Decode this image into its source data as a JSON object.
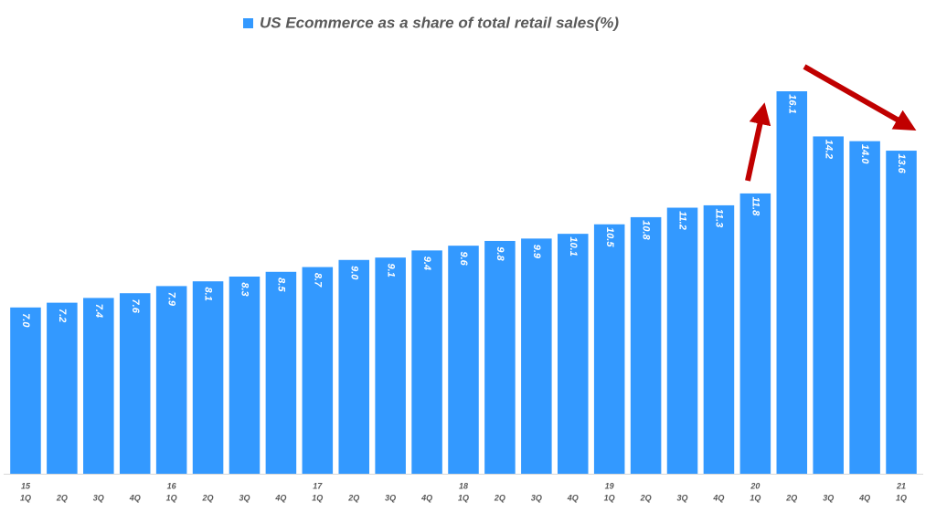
{
  "chart_data": {
    "type": "bar",
    "title": "US Ecommerce as a share of total retail sales(%)",
    "color": "#3399ff",
    "years": [
      "15",
      null,
      null,
      null,
      "16",
      null,
      null,
      null,
      "17",
      null,
      null,
      null,
      "18",
      null,
      null,
      null,
      "19",
      null,
      null,
      null,
      "20",
      null,
      null,
      null,
      "21"
    ],
    "categories": [
      "1Q",
      "2Q",
      "3Q",
      "4Q",
      "1Q",
      "2Q",
      "3Q",
      "4Q",
      "1Q",
      "2Q",
      "3Q",
      "4Q",
      "1Q",
      "2Q",
      "3Q",
      "4Q",
      "1Q",
      "2Q",
      "3Q",
      "4Q",
      "1Q",
      "2Q",
      "3Q",
      "4Q",
      "1Q"
    ],
    "values": [
      7.0,
      7.2,
      7.4,
      7.6,
      7.9,
      8.1,
      8.3,
      8.5,
      8.7,
      9.0,
      9.1,
      9.4,
      9.6,
      9.8,
      9.9,
      10.1,
      10.5,
      10.8,
      11.2,
      11.3,
      11.8,
      16.1,
      14.2,
      14.0,
      13.6
    ],
    "value_labels": [
      "7.0",
      "7.2",
      "7.4",
      "7.6",
      "7.9",
      "8.1",
      "8.3",
      "8.5",
      "8.7",
      "9.0",
      "9.1",
      "9.4",
      "9.6",
      "9.8",
      "9.9",
      "10.1",
      "10.5",
      "10.8",
      "11.2",
      "11.3",
      "11.8",
      "16.1",
      "14.2",
      "14.0",
      "13.6"
    ]
  }
}
